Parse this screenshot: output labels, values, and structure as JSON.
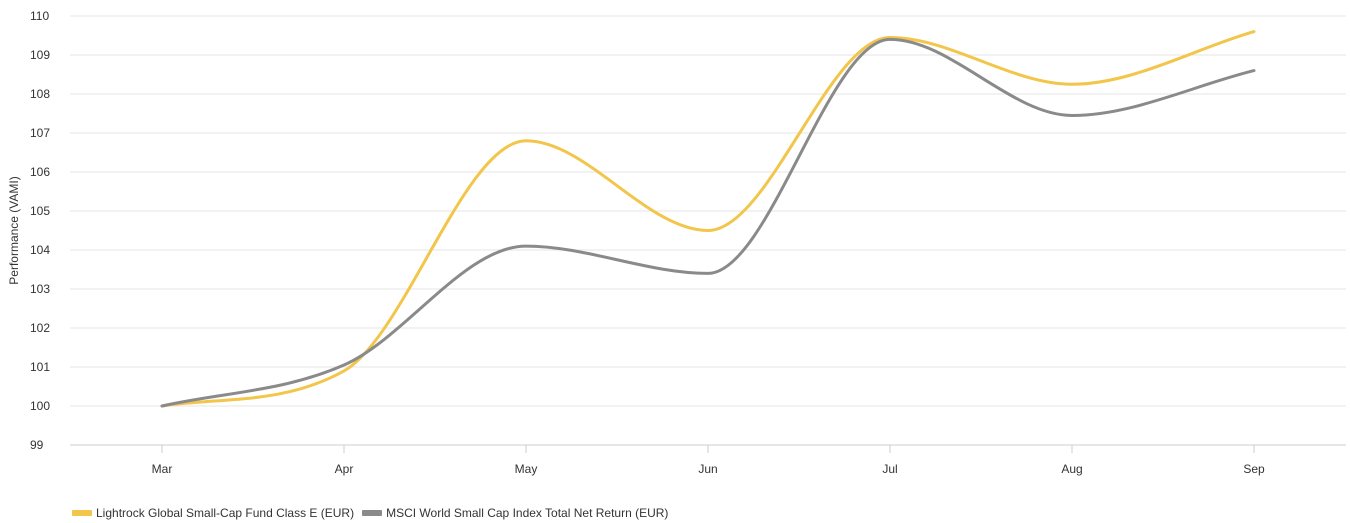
{
  "chart_data": {
    "type": "line",
    "ylabel": "Performance (VAMI)",
    "categories": [
      "Mar",
      "Apr",
      "May",
      "Jun",
      "Jul",
      "Aug",
      "Sep"
    ],
    "ylim": [
      99,
      110
    ],
    "yticks": [
      99,
      100,
      101,
      102,
      103,
      104,
      105,
      106,
      107,
      108,
      109,
      110
    ],
    "grid": true,
    "legend_position": "bottom-left",
    "series": [
      {
        "name": "Lightrock Global Small-Cap Fund Class E (EUR)",
        "color": "#f2c54b",
        "values": [
          100.0,
          100.9,
          106.8,
          104.5,
          109.45,
          108.25,
          109.6
        ]
      },
      {
        "name": "MSCI World Small Cap Index Total Net Return (EUR)",
        "color": "#8a8a8a",
        "values": [
          100.0,
          101.05,
          104.1,
          103.4,
          109.4,
          107.45,
          108.6
        ]
      }
    ]
  }
}
